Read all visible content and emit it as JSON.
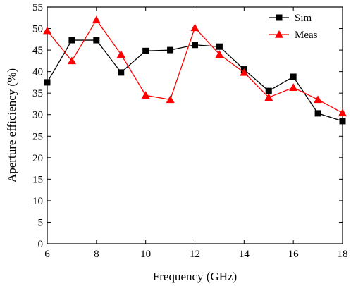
{
  "chart_data": {
    "type": "line",
    "title": "",
    "xlabel": "Frequency (GHz)",
    "ylabel": "Aperture efficiency (%)",
    "xlim": [
      6,
      18
    ],
    "ylim": [
      0,
      55
    ],
    "xticks": [
      6,
      8,
      10,
      12,
      14,
      16,
      18
    ],
    "yticks": [
      0,
      5,
      10,
      15,
      20,
      25,
      30,
      35,
      40,
      45,
      50,
      55
    ],
    "grid": false,
    "legend": "top-right",
    "x": [
      6,
      7,
      8,
      9,
      10,
      11,
      12,
      13,
      14,
      15,
      16,
      17,
      18
    ],
    "series": [
      {
        "name": "Sim",
        "color": "#000000",
        "marker": "square",
        "values": [
          37.5,
          47.3,
          47.3,
          39.8,
          44.8,
          45.0,
          46.2,
          45.8,
          40.5,
          35.5,
          38.8,
          30.3,
          28.5
        ]
      },
      {
        "name": "Meas",
        "color": "#ff0000",
        "marker": "triangle",
        "values": [
          49.5,
          42.5,
          52.0,
          44.0,
          34.5,
          33.5,
          50.2,
          44.0,
          39.8,
          34.0,
          36.3,
          33.5,
          30.4
        ]
      }
    ]
  }
}
